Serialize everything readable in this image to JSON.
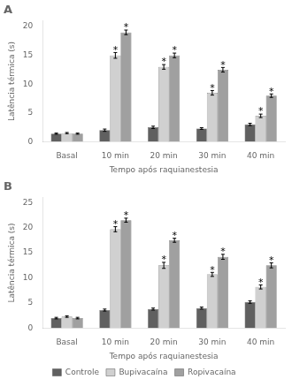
{
  "chart_data": [
    {
      "type": "bar",
      "title": "A",
      "categories": [
        "Basal",
        "10 min",
        "20 min",
        "30 min",
        "40 min"
      ],
      "series": [
        {
          "name": "Controle",
          "color": "#606060",
          "values": [
            1.4,
            2.0,
            2.5,
            2.3,
            3.0
          ],
          "errors": [
            0.1,
            0.2,
            0.2,
            0.15,
            0.2
          ]
        },
        {
          "name": "Bupivacaína",
          "color": "#d0d0d0",
          "values": [
            1.5,
            15.0,
            13.0,
            8.5,
            4.5
          ],
          "errors": [
            0.1,
            0.5,
            0.4,
            0.4,
            0.3
          ]
        },
        {
          "name": "Ropivacaína",
          "color": "#a0a0a0",
          "values": [
            1.4,
            19.0,
            15.0,
            12.5,
            8.0
          ],
          "errors": [
            0.1,
            0.4,
            0.4,
            0.4,
            0.3
          ]
        }
      ],
      "xlabel": "Tempo após raquianestesia",
      "ylabel": "Latência térmica (s)",
      "ylim": [
        0,
        21
      ],
      "yticks": [
        0,
        5,
        10,
        15,
        20
      ],
      "grid": false,
      "annotations": [
        {
          "text": "*",
          "series": "Bupivacaína",
          "category": "10 min"
        },
        {
          "text": "*",
          "series": "Bupivacaína",
          "category": "20 min"
        },
        {
          "text": "*",
          "series": "Bupivacaína",
          "category": "30 min"
        },
        {
          "text": "*",
          "series": "Bupivacaína",
          "category": "40 min"
        },
        {
          "text": "*",
          "series": "Ropivacaína",
          "category": "10 min"
        },
        {
          "text": "*",
          "series": "Ropivacaína",
          "category": "20 min"
        },
        {
          "text": "*",
          "series": "Ropivacaína",
          "category": "30 min"
        },
        {
          "text": "*",
          "series": "Ropivacaína",
          "category": "40 min"
        }
      ]
    },
    {
      "type": "bar",
      "title": "B",
      "categories": [
        "Basal",
        "10 min",
        "20 min",
        "30 min",
        "40 min"
      ],
      "series": [
        {
          "name": "Controle",
          "color": "#606060",
          "values": [
            2.0,
            3.6,
            3.8,
            4.0,
            5.2
          ],
          "errors": [
            0.15,
            0.2,
            0.2,
            0.2,
            0.25
          ]
        },
        {
          "name": "Bupivacaína",
          "color": "#d0d0d0",
          "values": [
            2.3,
            19.7,
            12.5,
            10.7,
            8.2
          ],
          "errors": [
            0.15,
            0.5,
            0.6,
            0.4,
            0.4
          ]
        },
        {
          "name": "Ropivacaína",
          "color": "#a0a0a0",
          "values": [
            2.0,
            21.5,
            17.5,
            14.2,
            12.5
          ],
          "errors": [
            0.15,
            0.4,
            0.4,
            0.5,
            0.5
          ]
        }
      ],
      "xlabel": "Tempo após raquianestesia",
      "ylabel": "Latência térmica (s)",
      "ylim": [
        0,
        26
      ],
      "yticks": [
        0,
        5,
        10,
        15,
        20,
        25
      ],
      "grid": false,
      "legend": "bottom",
      "annotations": [
        {
          "text": "*",
          "series": "Bupivacaína",
          "category": "10 min"
        },
        {
          "text": "*",
          "series": "Bupivacaína",
          "category": "20 min"
        },
        {
          "text": "*",
          "series": "Bupivacaína",
          "category": "30 min"
        },
        {
          "text": "*",
          "series": "Bupivacaína",
          "category": "40 min"
        },
        {
          "text": "*",
          "series": "Ropivacaína",
          "category": "10 min"
        },
        {
          "text": "*",
          "series": "Ropivacaína",
          "category": "20 min"
        },
        {
          "text": "*",
          "series": "Ropivacaína",
          "category": "30 min"
        },
        {
          "text": "*",
          "series": "Ropivacaína",
          "category": "40 min"
        }
      ]
    }
  ]
}
